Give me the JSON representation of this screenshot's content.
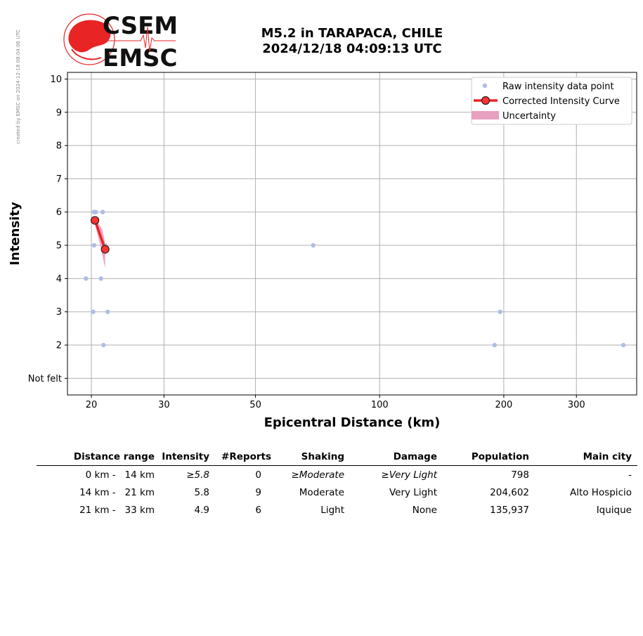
{
  "credit": "created by EMSC on 2024-12-18 08:04:06 UTC",
  "logo": {
    "line1": "CSEM",
    "line2": "EMSC"
  },
  "title": {
    "line1": "M5.2 in TARAPACA, CHILE",
    "line2": "2024/12/18 04:09:13 UTC"
  },
  "chart_data": {
    "type": "scatter",
    "xlabel": "Epicentral Distance (km)",
    "ylabel": "Intensity",
    "xscale": "log",
    "xlim": [
      17.5,
      420
    ],
    "ylim": [
      0.5,
      10.2
    ],
    "xticks": [
      20,
      30,
      50,
      100,
      200,
      300
    ],
    "xtick_labels": [
      "20",
      "30",
      "50",
      "100",
      "200",
      "300"
    ],
    "yticks": [
      1,
      2,
      3,
      4,
      5,
      6,
      7,
      8,
      9,
      10
    ],
    "ytick_labels": [
      "Not felt",
      "2",
      "3",
      "4",
      "5",
      "6",
      "7",
      "8",
      "9",
      "10"
    ],
    "grid": true,
    "legend_position": "top-right",
    "legend": [
      "Raw intensity data point",
      "Corrected Intensity Curve",
      "Uncertainty"
    ],
    "raw_points": [
      {
        "x": 19.4,
        "y": 4
      },
      {
        "x": 20.2,
        "y": 3
      },
      {
        "x": 20.3,
        "y": 5
      },
      {
        "x": 20.3,
        "y": 6
      },
      {
        "x": 20.5,
        "y": 6
      },
      {
        "x": 21.1,
        "y": 4
      },
      {
        "x": 21.3,
        "y": 6
      },
      {
        "x": 21.4,
        "y": 2
      },
      {
        "x": 21.6,
        "y": 5
      },
      {
        "x": 21.9,
        "y": 3
      },
      {
        "x": 69,
        "y": 5
      },
      {
        "x": 190,
        "y": 2
      },
      {
        "x": 196,
        "y": 3
      },
      {
        "x": 390,
        "y": 2
      }
    ],
    "curve": [
      {
        "x": 20.4,
        "y": 5.75
      },
      {
        "x": 21.6,
        "y": 4.88
      }
    ],
    "uncertainty": {
      "upper": [
        {
          "x": 20.4,
          "y": 5.85
        },
        {
          "x": 21.3,
          "y": 5.45
        },
        {
          "x": 21.6,
          "y": 5.05
        }
      ],
      "lower": [
        {
          "x": 21.6,
          "y": 4.3
        },
        {
          "x": 21.1,
          "y": 4.9
        },
        {
          "x": 20.4,
          "y": 5.65
        }
      ]
    },
    "colors": {
      "raw": "#aebde6",
      "curve": "#ee2222",
      "marker": "#ff3333",
      "uncertainty": "#e8a0c0",
      "grid": "#b0b0b0"
    }
  },
  "table": {
    "headers": [
      "Distance range",
      "Intensity",
      "#Reports",
      "Shaking",
      "Damage",
      "Population",
      "Main city"
    ],
    "rows": [
      {
        "from": "0 km -",
        "to": "14 km",
        "intensity": "≥5.8",
        "reports": "0",
        "shaking": "≥Moderate",
        "damage": "≥Very Light",
        "population": "798",
        "city": "-"
      },
      {
        "from": "14 km -",
        "to": "21 km",
        "intensity": "5.8",
        "reports": "9",
        "shaking": "Moderate",
        "damage": "Very Light",
        "population": "204,602",
        "city": "Alto Hospicio"
      },
      {
        "from": "21 km -",
        "to": "33 km",
        "intensity": "4.9",
        "reports": "6",
        "shaking": "Light",
        "damage": "None",
        "population": "135,937",
        "city": "Iquique"
      }
    ]
  }
}
